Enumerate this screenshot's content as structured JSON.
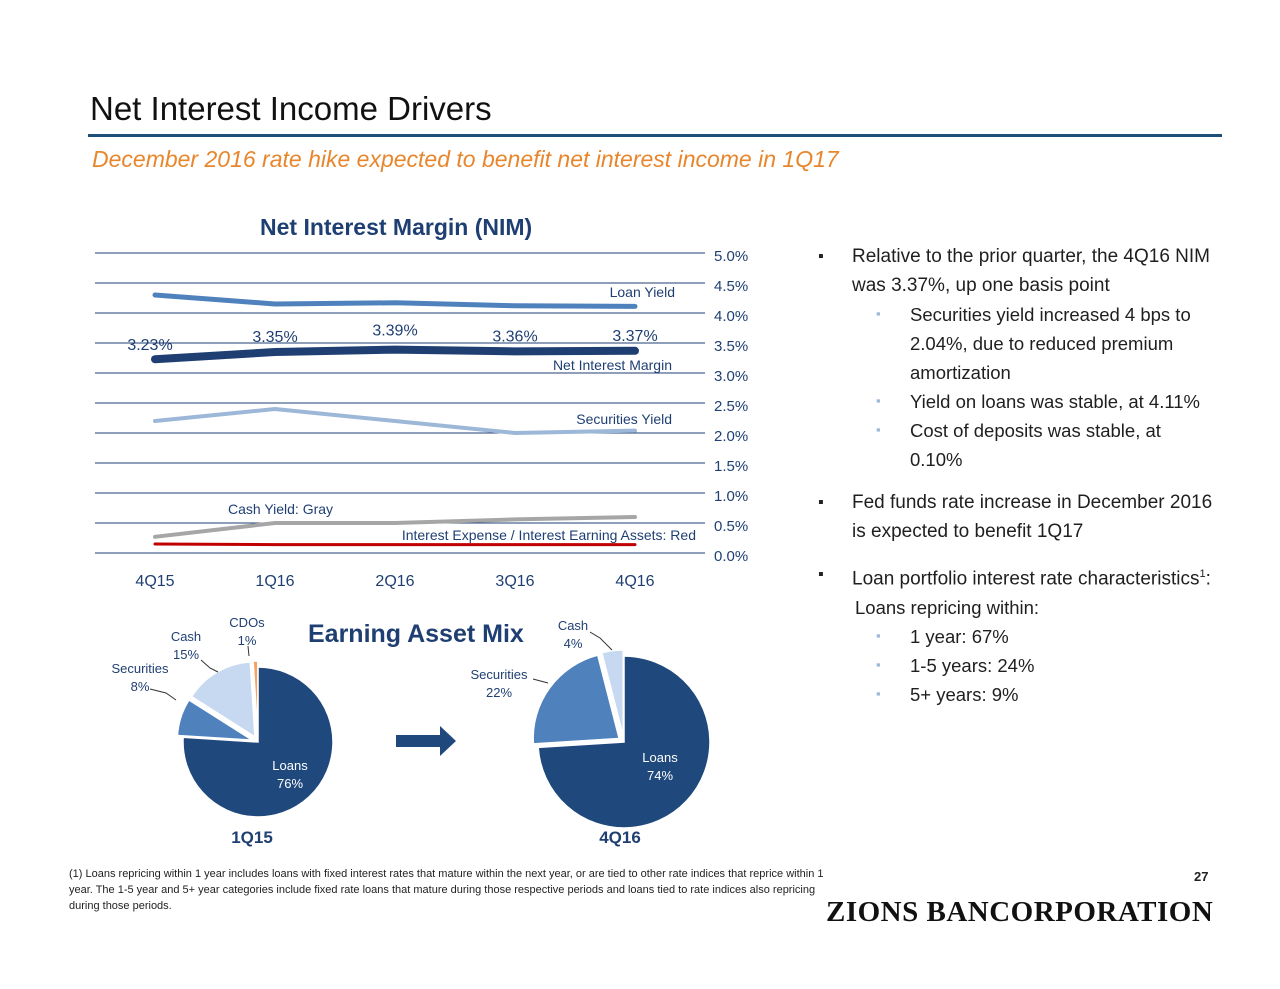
{
  "page": {
    "title": "Net Interest Income Drivers",
    "subtitle": "December 2016 rate hike expected to benefit net interest income in 1Q17",
    "page_number": "27",
    "logo_text": "ZIONS BANCORPORATION"
  },
  "bullets": [
    {
      "level": 1,
      "text": "Relative to the prior quarter, the 4Q16 NIM was 3.37%, up one basis point"
    },
    {
      "level": 2,
      "text": "Securities yield increased 4 bps to 2.04%, due to reduced premium amortization"
    },
    {
      "level": 2,
      "text": "Yield on loans was stable, at 4.11%"
    },
    {
      "level": 2,
      "text": "Cost of deposits was stable, at 0.10%"
    },
    {
      "level": 1,
      "text": "Fed funds rate increase in December 2016 is expected to benefit 1Q17"
    },
    {
      "level": 1,
      "text": "Loan portfolio interest rate characteristics",
      "sup": "1",
      "suffix": ":"
    },
    {
      "level": 0,
      "text": "Loans repricing within:"
    },
    {
      "level": 2,
      "text": "1 year: 67%"
    },
    {
      "level": 2,
      "text": "1-5 years: 24%"
    },
    {
      "level": 2,
      "text": "5+ years: 9%"
    }
  ],
  "footnote": "(1) Loans repricing within 1 year includes loans with fixed interest rates that mature within the next year, or are tied to other rate indices that reprice within 1 year. The 1-5 year and 5+ year categories include fixed rate loans that mature during those respective periods and loans tied to rate indices also repricing during those periods.",
  "chart_data": [
    {
      "type": "line",
      "title": "Net Interest Margin (NIM)",
      "categories": [
        "4Q15",
        "1Q16",
        "2Q16",
        "3Q16",
        "4Q16"
      ],
      "ylim": [
        0,
        5
      ],
      "y_ticks": [
        "0.0%",
        "0.5%",
        "1.0%",
        "1.5%",
        "2.0%",
        "2.5%",
        "3.0%",
        "3.5%",
        "4.0%",
        "4.5%",
        "5.0%"
      ],
      "y_axis_position": "right",
      "grid": true,
      "series": [
        {
          "name": "Loan Yield",
          "values": [
            4.3,
            4.15,
            4.17,
            4.12,
            4.11
          ],
          "color": "#4f81bd",
          "width": 5
        },
        {
          "name": "Net Interest Margin",
          "values": [
            3.23,
            3.35,
            3.39,
            3.36,
            3.37
          ],
          "color": "#1f3f73",
          "width": 8,
          "data_labels": [
            "3.23%",
            "3.35%",
            "3.39%",
            "3.36%",
            "3.37%"
          ]
        },
        {
          "name": "Securities Yield",
          "values": [
            2.2,
            2.4,
            2.2,
            2.0,
            2.04
          ],
          "color": "#9db7d8",
          "width": 4
        },
        {
          "name": "Cash Yield: Gray",
          "values": [
            0.27,
            0.5,
            0.5,
            0.56,
            0.6
          ],
          "color": "#a6a6a6",
          "width": 4
        },
        {
          "name": "Interest Expense / Interest Earning Assets: Red",
          "values": [
            0.15,
            0.14,
            0.14,
            0.14,
            0.14
          ],
          "color": "#c00000",
          "width": 3
        }
      ]
    },
    {
      "type": "pie",
      "title": "Earning Asset Mix",
      "caption": "1Q15",
      "slices": [
        {
          "label": "Loans",
          "value": 76,
          "text": "76%",
          "color": "#1f497d"
        },
        {
          "label": "Securities",
          "value": 8,
          "text": "8%",
          "color": "#4f81bd"
        },
        {
          "label": "Cash",
          "value": 15,
          "text": "15%",
          "color": "#c6d9f1"
        },
        {
          "label": "CDOs",
          "value": 1,
          "text": "1%",
          "color": "#f4a460"
        }
      ]
    },
    {
      "type": "pie",
      "caption": "4Q16",
      "slices": [
        {
          "label": "Loans",
          "value": 74,
          "text": "74%",
          "color": "#1f497d"
        },
        {
          "label": "Securities",
          "value": 22,
          "text": "22%",
          "color": "#4f81bd"
        },
        {
          "label": "Cash",
          "value": 4,
          "text": "4%",
          "color": "#c6d9f1"
        }
      ]
    }
  ]
}
